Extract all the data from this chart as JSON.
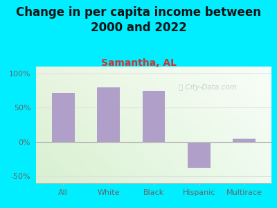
{
  "title": "Change in per capita income between\n2000 and 2022",
  "subtitle": "Samantha, AL",
  "categories": [
    "All",
    "White",
    "Black",
    "Hispanic",
    "Multirace"
  ],
  "values": [
    72,
    80,
    75,
    -38,
    5
  ],
  "bar_color": "#b09fc8",
  "bar_width": 0.5,
  "ylim": [
    -60,
    110
  ],
  "yticks": [
    -50,
    0,
    50,
    100
  ],
  "ytick_labels": [
    "-50%",
    "0%",
    "50%",
    "100%"
  ],
  "background_outer": "#00eeff",
  "bg_top_left": "#e8f5e0",
  "bg_top_right": "#f8fef8",
  "bg_bottom_left": "#d8f0d0",
  "bg_bottom_right": "#eefbee",
  "title_fontsize": 12,
  "subtitle_fontsize": 10,
  "subtitle_color": "#cc3333",
  "title_color": "#111111",
  "tick_color": "#666666",
  "grid_color": "#e0e0e0",
  "watermark": "City-Data.com",
  "watermark_color": "#c0c8c0",
  "axis_color": "#bbbbbb"
}
